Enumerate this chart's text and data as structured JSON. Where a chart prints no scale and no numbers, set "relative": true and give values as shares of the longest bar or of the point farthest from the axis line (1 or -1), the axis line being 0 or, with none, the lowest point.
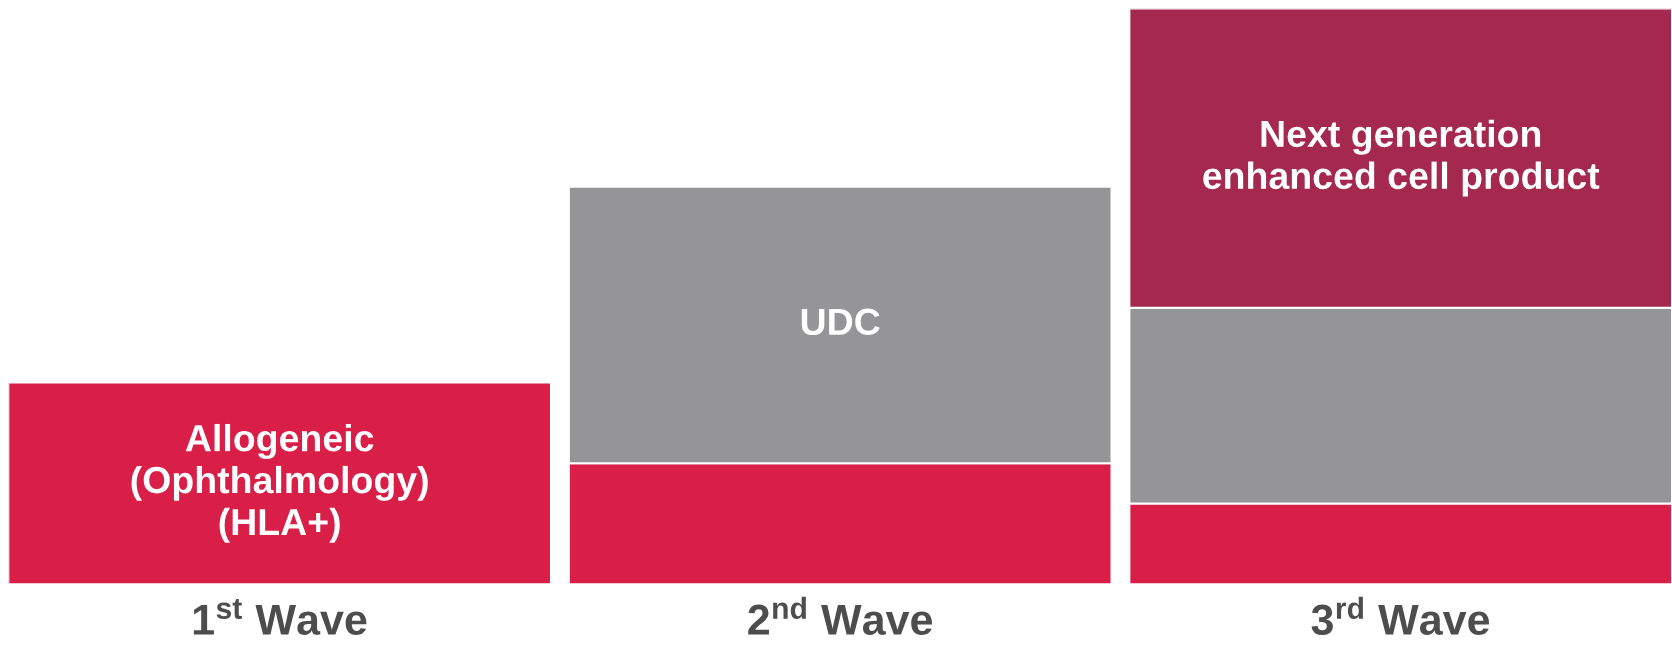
{
  "chart_data": {
    "type": "bar",
    "stacked": true,
    "relative": true,
    "categories": [
      "1$^{st}$ Wave",
      "2$^{nd}$ Wave",
      "3$^{rd}$ Wave"
    ],
    "series": [
      {
        "color": "#d91f48",
        "values": [
          0.35,
          0.21,
          0.14
        ]
      },
      {
        "color": "#959597",
        "values": [
          null,
          0.48,
          0.34
        ]
      },
      {
        "color": "#a5294e",
        "values": [
          null,
          null,
          0.52
        ]
      }
    ],
    "annotations": [
      "Allogeneic\n(Ophthalmology)\n(HLA+)",
      "UDC",
      "Next generation\nenhanced cell product"
    ],
    "grid": false,
    "legend": false
  }
}
